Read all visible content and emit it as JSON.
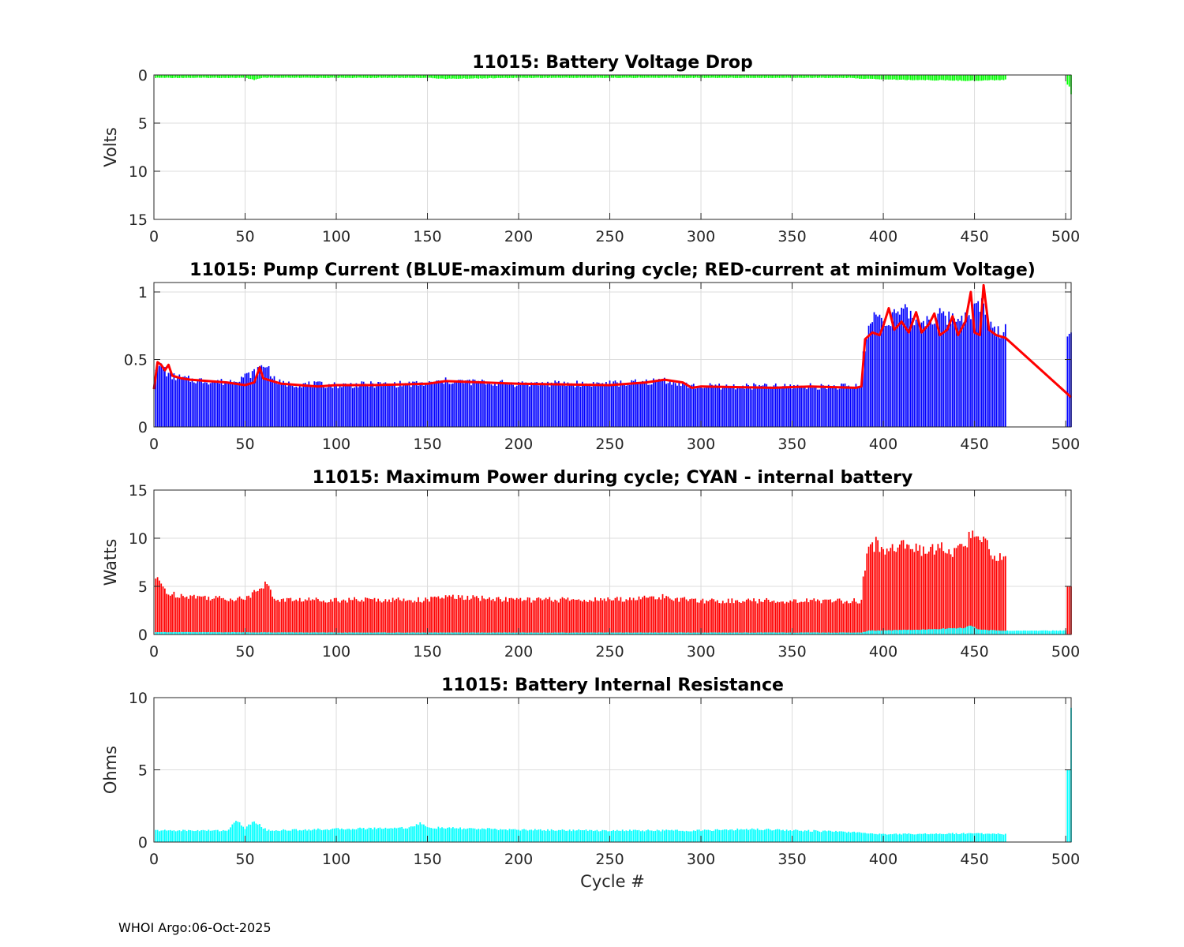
{
  "footer": "WHOI Argo:06-Oct-2025",
  "chart_data": [
    {
      "id": "voltage",
      "type": "bar",
      "title": "11015: Battery Voltage Drop",
      "ylabel": "Volts",
      "xlabel": "",
      "xlim": [
        0,
        503
      ],
      "ylim": [
        0,
        15
      ],
      "y_reversed": true,
      "grid": true,
      "xticks": [
        0,
        50,
        100,
        150,
        200,
        250,
        300,
        350,
        400,
        450,
        500
      ],
      "yticks": [
        0,
        5,
        10,
        15
      ],
      "series": [
        {
          "color": "#00ff00",
          "segments": [
            {
              "x_start": 1,
              "x_end": 467,
              "points": [
                [
                  1,
                  0.3
                ],
                [
                  50,
                  0.3
                ],
                [
                  55,
                  0.5
                ],
                [
                  60,
                  0.3
                ],
                [
                  150,
                  0.3
                ],
                [
                  160,
                  0.4
                ],
                [
                  200,
                  0.3
                ],
                [
                  300,
                  0.3
                ],
                [
                  380,
                  0.3
                ],
                [
                  390,
                  0.4
                ],
                [
                  410,
                  0.5
                ],
                [
                  450,
                  0.6
                ],
                [
                  467,
                  0.5
                ]
              ]
            },
            {
              "x_start": 501,
              "x_end": 503,
              "points": [
                [
                  501,
                  1.0
                ],
                [
                  502,
                  1.2
                ],
                [
                  503,
                  2.0
                ]
              ]
            }
          ]
        }
      ]
    },
    {
      "id": "pump",
      "type": "bar+line",
      "title": "11015: Pump Current (BLUE-maximum during cycle; RED-current at minimum Voltage)",
      "ylabel": "",
      "xlabel": "",
      "xlim": [
        0,
        503
      ],
      "ylim": [
        0,
        1.07
      ],
      "grid": true,
      "xticks": [
        0,
        50,
        100,
        150,
        200,
        250,
        300,
        350,
        400,
        450,
        500
      ],
      "yticks": [
        0,
        0.5,
        1
      ],
      "series": [
        {
          "name": "",
          "kind": "bar",
          "color": "#0000ff",
          "segments": [
            {
              "x_start": 1,
              "x_end": 467,
              "points": [
                [
                  1,
                  0.45
                ],
                [
                  5,
                  0.45
                ],
                [
                  8,
                  0.38
                ],
                [
                  20,
                  0.35
                ],
                [
                  40,
                  0.33
                ],
                [
                  55,
                  0.4
                ],
                [
                  58,
                  0.44
                ],
                [
                  62,
                  0.46
                ],
                [
                  66,
                  0.35
                ],
                [
                  70,
                  0.32
                ],
                [
                  100,
                  0.31
                ],
                [
                  150,
                  0.32
                ],
                [
                  160,
                  0.34
                ],
                [
                  200,
                  0.32
                ],
                [
                  250,
                  0.32
                ],
                [
                  270,
                  0.33
                ],
                [
                  280,
                  0.35
                ],
                [
                  295,
                  0.3
                ],
                [
                  340,
                  0.3
                ],
                [
                  388,
                  0.3
                ],
                [
                  389,
                  0.55
                ],
                [
                  392,
                  0.72
                ],
                [
                  396,
                  0.85
                ],
                [
                  400,
                  0.78
                ],
                [
                  410,
                  0.86
                ],
                [
                  420,
                  0.78
                ],
                [
                  430,
                  0.82
                ],
                [
                  440,
                  0.8
                ],
                [
                  450,
                  0.88
                ],
                [
                  455,
                  0.9
                ],
                [
                  460,
                  0.7
                ],
                [
                  467,
                  0.72
                ]
              ]
            },
            {
              "x_start": 501,
              "x_end": 503,
              "points": [
                [
                  501,
                  0.67
                ],
                [
                  502,
                  0.69
                ],
                [
                  503,
                  0.7
                ]
              ]
            }
          ]
        },
        {
          "name": "",
          "kind": "line",
          "color": "#ff0000",
          "points": [
            [
              0,
              0.28
            ],
            [
              2,
              0.48
            ],
            [
              4,
              0.46
            ],
            [
              6,
              0.42
            ],
            [
              8,
              0.46
            ],
            [
              10,
              0.38
            ],
            [
              15,
              0.36
            ],
            [
              20,
              0.35
            ],
            [
              30,
              0.34
            ],
            [
              40,
              0.33
            ],
            [
              50,
              0.31
            ],
            [
              55,
              0.33
            ],
            [
              58,
              0.44
            ],
            [
              60,
              0.36
            ],
            [
              65,
              0.34
            ],
            [
              70,
              0.32
            ],
            [
              90,
              0.3
            ],
            [
              100,
              0.31
            ],
            [
              120,
              0.31
            ],
            [
              150,
              0.32
            ],
            [
              160,
              0.34
            ],
            [
              200,
              0.32
            ],
            [
              250,
              0.31
            ],
            [
              270,
              0.33
            ],
            [
              280,
              0.35
            ],
            [
              290,
              0.33
            ],
            [
              295,
              0.29
            ],
            [
              300,
              0.3
            ],
            [
              340,
              0.29
            ],
            [
              360,
              0.3
            ],
            [
              385,
              0.29
            ],
            [
              388,
              0.3
            ],
            [
              390,
              0.65
            ],
            [
              394,
              0.7
            ],
            [
              398,
              0.68
            ],
            [
              400,
              0.75
            ],
            [
              403,
              0.88
            ],
            [
              406,
              0.72
            ],
            [
              410,
              0.78
            ],
            [
              414,
              0.7
            ],
            [
              418,
              0.85
            ],
            [
              421,
              0.7
            ],
            [
              425,
              0.76
            ],
            [
              428,
              0.84
            ],
            [
              431,
              0.68
            ],
            [
              435,
              0.72
            ],
            [
              438,
              0.82
            ],
            [
              441,
              0.68
            ],
            [
              445,
              0.78
            ],
            [
              448,
              1.0
            ],
            [
              450,
              0.7
            ],
            [
              453,
              0.68
            ],
            [
              455,
              1.05
            ],
            [
              458,
              0.72
            ],
            [
              462,
              0.68
            ],
            [
              467,
              0.66
            ],
            [
              503,
              0.22
            ]
          ]
        }
      ]
    },
    {
      "id": "power",
      "type": "bar",
      "title": "11015: Maximum Power during cycle; CYAN - internal battery",
      "ylabel": "Watts",
      "xlabel": "",
      "xlim": [
        0,
        503
      ],
      "ylim": [
        0,
        15
      ],
      "grid": true,
      "xticks": [
        0,
        50,
        100,
        150,
        200,
        250,
        300,
        350,
        400,
        450,
        500
      ],
      "yticks": [
        0,
        5,
        10,
        15
      ],
      "series": [
        {
          "kind": "bar",
          "color": "#ff0000",
          "segments": [
            {
              "x_start": 1,
              "x_end": 467,
              "points": [
                [
                  1,
                  5.8
                ],
                [
                  5,
                  5.0
                ],
                [
                  8,
                  4.2
                ],
                [
                  20,
                  4.0
                ],
                [
                  40,
                  3.7
                ],
                [
                  52,
                  3.8
                ],
                [
                  55,
                  4.6
                ],
                [
                  58,
                  5.0
                ],
                [
                  62,
                  5.2
                ],
                [
                  66,
                  3.7
                ],
                [
                  70,
                  3.6
                ],
                [
                  100,
                  3.6
                ],
                [
                  150,
                  3.6
                ],
                [
                  160,
                  3.9
                ],
                [
                  200,
                  3.6
                ],
                [
                  250,
                  3.6
                ],
                [
                  270,
                  3.8
                ],
                [
                  280,
                  3.9
                ],
                [
                  295,
                  3.5
                ],
                [
                  340,
                  3.5
                ],
                [
                  388,
                  3.5
                ],
                [
                  389,
                  6.5
                ],
                [
                  392,
                  8.5
                ],
                [
                  396,
                  9.5
                ],
                [
                  400,
                  8.6
                ],
                [
                  410,
                  9.5
                ],
                [
                  420,
                  8.6
                ],
                [
                  430,
                  9.0
                ],
                [
                  440,
                  8.5
                ],
                [
                  450,
                  10.5
                ],
                [
                  455,
                  10.0
                ],
                [
                  460,
                  8.2
                ],
                [
                  467,
                  8.2
                ]
              ]
            },
            {
              "x_start": 501,
              "x_end": 503,
              "points": [
                [
                  501,
                  5.0
                ],
                [
                  503,
                  5.0
                ]
              ]
            }
          ]
        },
        {
          "kind": "bar",
          "color": "#00ffff",
          "segments": [
            {
              "x_start": 1,
              "x_end": 467,
              "points": [
                [
                  1,
                  0.25
                ],
                [
                  100,
                  0.2
                ],
                [
                  388,
                  0.2
                ],
                [
                  392,
                  0.4
                ],
                [
                  420,
                  0.5
                ],
                [
                  445,
                  0.7
                ],
                [
                  448,
                  1.0
                ],
                [
                  452,
                  0.5
                ],
                [
                  467,
                  0.4
                ]
              ]
            },
            {
              "x_start": 468,
              "x_end": 500,
              "points": [
                [
                  468,
                  0.4
                ],
                [
                  500,
                  0.4
                ]
              ]
            }
          ]
        }
      ]
    },
    {
      "id": "resistance",
      "type": "bar",
      "title": "11015: Battery Internal Resistance",
      "ylabel": "Ohms",
      "xlabel": "Cycle #",
      "xlim": [
        0,
        503
      ],
      "ylim": [
        0,
        10
      ],
      "grid": true,
      "xticks": [
        0,
        50,
        100,
        150,
        200,
        250,
        300,
        350,
        400,
        450,
        500
      ],
      "yticks": [
        0,
        5,
        10
      ],
      "series": [
        {
          "kind": "bar",
          "color": "#00ffff",
          "segments": [
            {
              "x_start": 1,
              "x_end": 467,
              "points": [
                [
                  1,
                  0.8
                ],
                [
                  40,
                  0.8
                ],
                [
                  46,
                  1.5
                ],
                [
                  50,
                  0.9
                ],
                [
                  54,
                  1.4
                ],
                [
                  58,
                  1.2
                ],
                [
                  62,
                  0.8
                ],
                [
                  100,
                  0.9
                ],
                [
                  140,
                  1.0
                ],
                [
                  146,
                  1.3
                ],
                [
                  150,
                  1.0
                ],
                [
                  200,
                  0.85
                ],
                [
                  250,
                  0.8
                ],
                [
                  300,
                  0.8
                ],
                [
                  330,
                  0.9
                ],
                [
                  380,
                  0.7
                ],
                [
                  400,
                  0.55
                ],
                [
                  450,
                  0.6
                ],
                [
                  467,
                  0.55
                ]
              ]
            },
            {
              "x_start": 501,
              "x_end": 503,
              "points": [
                [
                  501,
                  5.0
                ],
                [
                  502,
                  5.0
                ],
                [
                  503,
                  9.3
                ]
              ]
            }
          ]
        }
      ]
    }
  ]
}
